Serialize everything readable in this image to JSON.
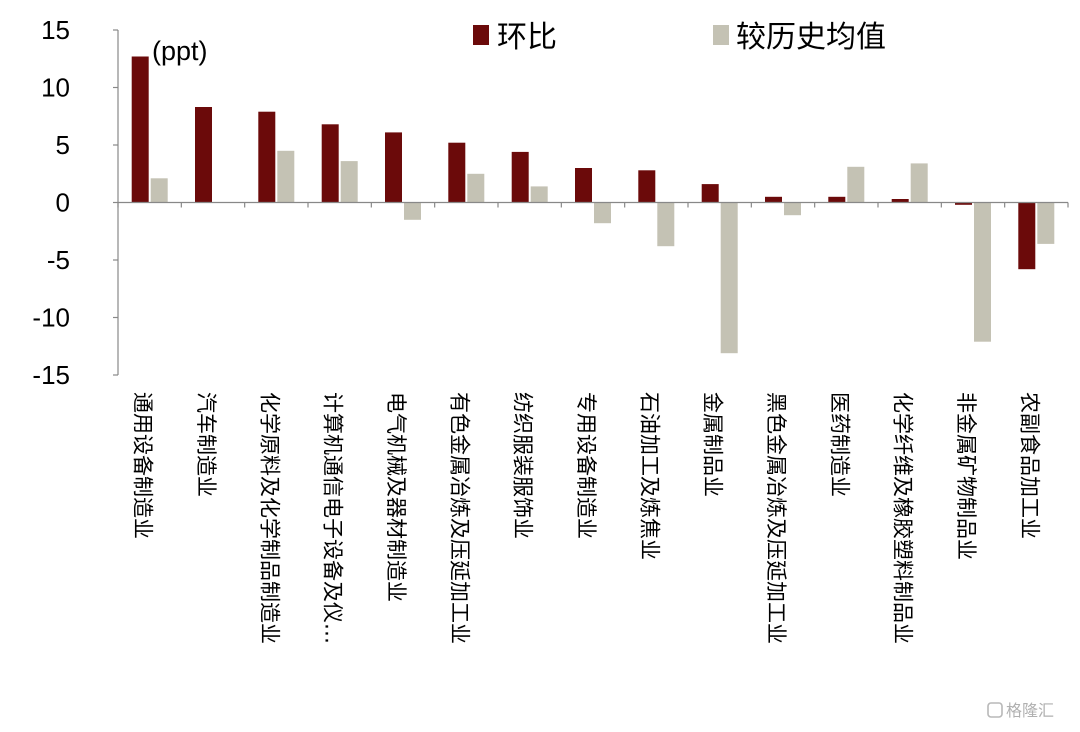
{
  "chart_data": {
    "type": "bar",
    "unit_label": "(ppt)",
    "categories": [
      "通用设备制造业",
      "汽车制造业",
      "化学原料及化学制品制造业",
      "计算机通信电子设备及仪…",
      "电气机械及器材制造业",
      "有色金属冶炼及压延加工业",
      "纺织服装服饰业",
      "专用设备制造业",
      "石油加工及炼焦业",
      "金属制品业",
      "黑色金属冶炼及压延加工业",
      "医药制造业",
      "化学纤维及橡胶塑料制品业",
      "非金属矿物制品业",
      "农副食品加工业"
    ],
    "series": [
      {
        "name": "环比",
        "color": "#6b0a0a",
        "values": [
          12.7,
          8.3,
          7.9,
          6.8,
          6.1,
          5.2,
          4.4,
          3.0,
          2.8,
          1.6,
          0.5,
          0.5,
          0.3,
          -0.2,
          -5.8
        ]
      },
      {
        "name": "较历史均值",
        "color": "#c4c2b4",
        "values": [
          2.1,
          0.0,
          4.5,
          3.6,
          -1.5,
          2.5,
          1.4,
          -1.8,
          -3.8,
          -13.1,
          -1.1,
          3.1,
          3.4,
          -12.1,
          -3.6
        ]
      }
    ],
    "ylim": [
      -15,
      15
    ],
    "yticks": [
      15,
      10,
      5,
      0,
      -5,
      -10,
      -15
    ],
    "legend_position": "top",
    "grid": false
  },
  "watermark": "格隆汇"
}
